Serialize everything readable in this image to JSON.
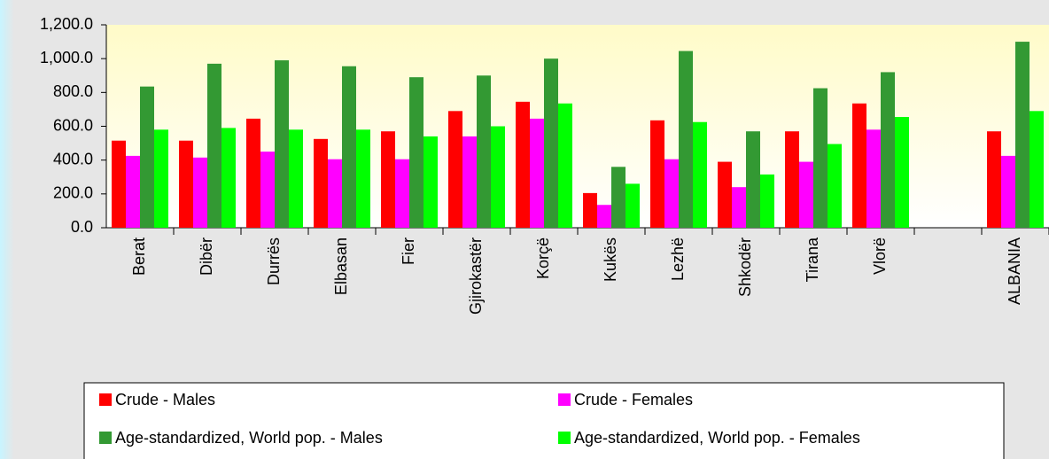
{
  "chart_data": {
    "type": "bar",
    "categories": [
      "Berat",
      "Dibër",
      "Durrës",
      "Elbasan",
      "Fier",
      "Gjirokastër",
      "Korçë",
      "Kukës",
      "Lezhë",
      "Shkodër",
      "Tirana",
      "Vlorë",
      null,
      "ALBANIA"
    ],
    "series": [
      {
        "name": "Crude - Males",
        "color": "#ff0000",
        "values": [
          515,
          515,
          645,
          525,
          570,
          690,
          745,
          205,
          635,
          390,
          570,
          735,
          null,
          570
        ]
      },
      {
        "name": "Crude - Females",
        "color": "#ff00ff",
        "values": [
          425,
          415,
          450,
          405,
          405,
          540,
          645,
          135,
          405,
          240,
          390,
          580,
          null,
          425
        ]
      },
      {
        "name": "Age-standardized, World pop. - Males",
        "color": "#339933",
        "values": [
          835,
          970,
          990,
          955,
          890,
          900,
          1000,
          360,
          1045,
          570,
          825,
          920,
          null,
          1100
        ]
      },
      {
        "name": "Age-standardized, World pop. - Females",
        "color": "#00ff00",
        "values": [
          580,
          590,
          580,
          580,
          540,
          600,
          735,
          260,
          625,
          315,
          495,
          655,
          null,
          690
        ]
      }
    ],
    "ylim": [
      0,
      1200
    ],
    "yticks": [
      {
        "value": 0,
        "label": "0.0"
      },
      {
        "value": 200,
        "label": "200.0"
      },
      {
        "value": 400,
        "label": "400.0"
      },
      {
        "value": 600,
        "label": "600.0"
      },
      {
        "value": 800,
        "label": "800.0"
      },
      {
        "value": 1000,
        "label": "1,000.0"
      },
      {
        "value": 1200,
        "label": "1,200.0"
      }
    ],
    "grid": false,
    "legend": "bottom"
  }
}
